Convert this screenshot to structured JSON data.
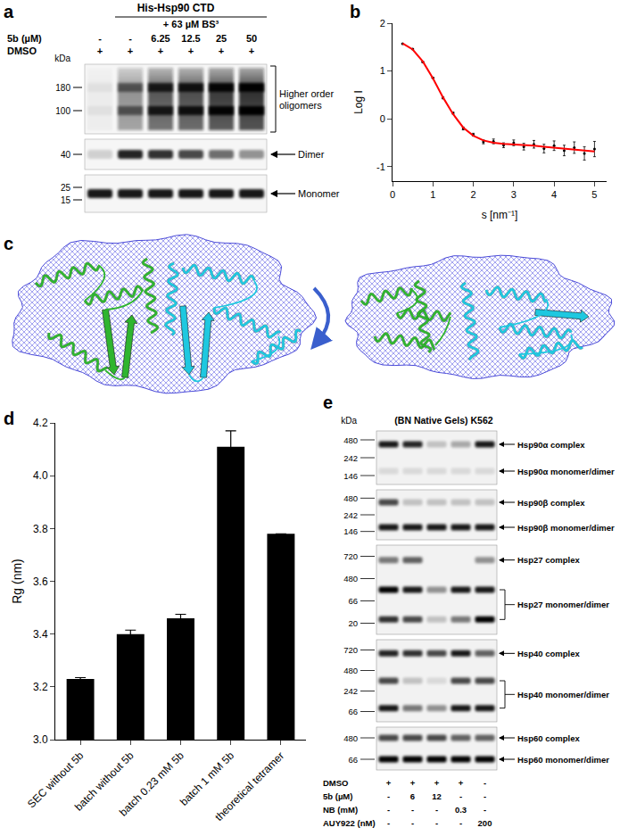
{
  "panel_labels": [
    "a",
    "b",
    "c",
    "d",
    "e"
  ],
  "chart_data": [
    {
      "type": "scatter",
      "x_label": "s [nm⁻¹]",
      "y_label": "Log I",
      "x": [
        0.25,
        0.5,
        0.75,
        1.0,
        1.25,
        1.5,
        1.75,
        2.0,
        2.25,
        2.5,
        2.75,
        3.0,
        3.25,
        3.5,
        3.75,
        4.0,
        4.25,
        4.5,
        4.75,
        5.0
      ],
      "series": [
        {
          "type": "scatter",
          "color": "#000000",
          "marker": "circle",
          "values": [
            1.57,
            1.46,
            1.19,
            0.86,
            0.44,
            0.12,
            -0.2,
            -0.33,
            -0.48,
            -0.47,
            -0.55,
            -0.5,
            -0.58,
            -0.53,
            -0.62,
            -0.56,
            -0.66,
            -0.6,
            -0.72,
            -0.63
          ],
          "errors": [
            0.01,
            0.01,
            0.01,
            0.01,
            0.02,
            0.02,
            0.03,
            0.03,
            0.04,
            0.05,
            0.05,
            0.06,
            0.07,
            0.08,
            0.09,
            0.1,
            0.11,
            0.12,
            0.14,
            0.16
          ]
        },
        {
          "type": "line",
          "color": "#ff0000",
          "values": [
            1.58,
            1.45,
            1.2,
            0.85,
            0.45,
            0.1,
            -0.18,
            -0.35,
            -0.45,
            -0.5,
            -0.52,
            -0.53,
            -0.55,
            -0.56,
            -0.58,
            -0.6,
            -0.62,
            -0.64,
            -0.66,
            -0.68
          ]
        }
      ],
      "xlim": [
        0,
        5.3
      ],
      "xticks": [
        0,
        1,
        2,
        3,
        4,
        5
      ],
      "ylim": [
        -1.3,
        2
      ],
      "yticks": [
        -1,
        0,
        1,
        2
      ],
      "grid": false
    },
    {
      "type": "bar",
      "y_label": "Rg (nm)",
      "categories": [
        "SEC without 5b",
        "batch without 5b",
        "batch 0.23 mM 5b",
        "batch 1 mM 5b",
        "theoretical tetramer"
      ],
      "values": [
        3.23,
        3.4,
        3.46,
        4.11,
        3.78
      ],
      "errors": [
        0.005,
        0.015,
        0.015,
        0.06,
        null
      ],
      "color": "#000000",
      "ylim": [
        3.0,
        4.2
      ],
      "yticks": [
        {
          "value": 3,
          "label": "3.0"
        },
        3.2,
        3.4,
        3.6,
        3.8,
        {
          "value": 4,
          "label": "4.0"
        },
        4.2
      ],
      "grid": false
    }
  ],
  "blot_a": {
    "header": "His-Hsp90 CTD",
    "crosslinker": "+ 63 µM BS³",
    "mw_unit": "kDa",
    "conditions": [
      {
        "label": "5b (µM)",
        "values": [
          "-",
          "-",
          "6.25",
          "12.5",
          "25",
          "50"
        ]
      },
      {
        "label": "DMSO",
        "values": [
          "+",
          "+",
          "+",
          "+",
          "+",
          "+"
        ]
      }
    ],
    "strips": [
      {
        "markers": [
          180,
          100
        ],
        "label": [
          "Higher order",
          "oligomers"
        ],
        "intensity": [
          0.05,
          0.5,
          0.8,
          0.85,
          0.95,
          1.0
        ]
      },
      {
        "markers": [
          40
        ],
        "label": [
          "Dimer"
        ],
        "intensity": [
          0.15,
          0.85,
          0.8,
          0.7,
          0.55,
          0.4
        ]
      },
      {
        "markers": [
          25,
          15
        ],
        "label": [
          "Monomer"
        ],
        "intensity": [
          0.9,
          0.9,
          0.9,
          0.9,
          0.9,
          0.9
        ]
      }
    ]
  },
  "model_c": {
    "views": 2
  },
  "gel_e": {
    "title": "(BN Native Gels) K562",
    "mw_unit": "kDa",
    "strips": [
      {
        "markers": [
          480,
          242,
          146
        ],
        "bands": [
          {
            "label": "Hsp90α complex",
            "intensity": [
              [
                0.9,
                0.85,
                0.2,
                0.3,
                0.9
              ]
            ]
          },
          {
            "label": "Hsp90α monomer/dimer",
            "intensity": [
              [
                0.1,
                0.1,
                0.1,
                0.1,
                0.1
              ]
            ]
          }
        ]
      },
      {
        "markers": [
          480,
          242,
          146
        ],
        "bands": [
          {
            "label": "Hsp90β complex",
            "intensity": [
              [
                0.7,
                0.2,
                0.2,
                0.2,
                0.2
              ]
            ]
          },
          {
            "label": "Hsp90β monomer/dimer",
            "intensity": [
              [
                0.9,
                0.9,
                0.9,
                0.9,
                0.9
              ]
            ]
          }
        ]
      },
      {
        "markers": [
          720,
          480,
          66,
          20
        ],
        "bands": [
          {
            "label": "Hsp27 complex",
            "intensity": [
              [
                0.5,
                0.6,
                0.0,
                0.0,
                0.4
              ]
            ]
          },
          {
            "label": "Hsp27 monomer/dimer",
            "intensity": [
              [
                1.0,
                0.9,
                0.4,
                0.9,
                0.9
              ],
              [
                0.8,
                0.7,
                0.2,
                0.5,
                1.0
              ]
            ]
          }
        ]
      },
      {
        "markers": [
          720,
          480,
          242,
          66
        ],
        "bands": [
          {
            "label": "Hsp40 complex",
            "intensity": [
              [
                0.85,
                0.8,
                0.7,
                0.9,
                0.6
              ]
            ]
          },
          {
            "label": "Hsp40 monomer/dimer",
            "intensity": [
              [
                0.7,
                0.2,
                0.1,
                0.7,
                0.7
              ],
              [
                0.9,
                0.5,
                0.4,
                0.9,
                0.9
              ]
            ]
          }
        ]
      },
      {
        "markers": [
          480,
          66
        ],
        "bands": [
          {
            "label": "Hsp60 complex",
            "intensity": [
              [
                0.7,
                0.7,
                0.7,
                0.6,
                0.6
              ]
            ]
          },
          {
            "label": "Hsp60 monomer/dimer",
            "intensity": [
              [
                1.0,
                1.0,
                1.0,
                1.0,
                1.0
              ]
            ]
          }
        ]
      }
    ],
    "conditions": [
      {
        "label": "DMSO",
        "values": [
          "+",
          "+",
          "+",
          "+",
          "-"
        ]
      },
      {
        "label": "5b (µM)",
        "values": [
          "-",
          "6",
          "12",
          "-",
          "-"
        ]
      },
      {
        "label": "NB (mM)",
        "values": [
          "-",
          "-",
          "-",
          "0.3",
          "-"
        ]
      },
      {
        "label": "AUY922 (nM)",
        "values": [
          "-",
          "-",
          "-",
          "-",
          "200"
        ]
      }
    ]
  }
}
